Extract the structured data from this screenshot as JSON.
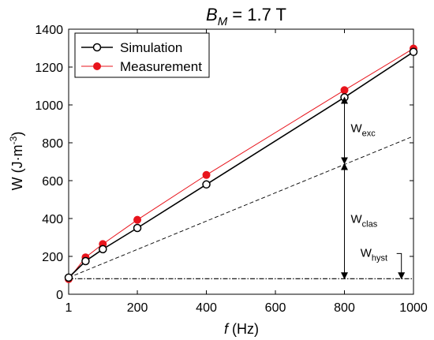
{
  "chart_data": {
    "type": "line",
    "title_parts": {
      "symbol": "B",
      "subscript": "M",
      "rest": " = 1.7 T"
    },
    "xlabel_parts": {
      "italic": "f",
      "rest": " (Hz)"
    },
    "ylabel_parts": {
      "main": "W (J·m",
      "sup": "-3",
      "close": ")"
    },
    "xlim": [
      1,
      1000
    ],
    "ylim": [
      0,
      1400
    ],
    "x_ticks": [
      1,
      200,
      400,
      600,
      800,
      1000
    ],
    "y_ticks": [
      0,
      200,
      400,
      600,
      800,
      1000,
      1200,
      1400
    ],
    "grid": false,
    "legend_position": "top-left",
    "series": [
      {
        "name": "Simulation",
        "style": "black line, open circles",
        "color": "#000000",
        "x": [
          1,
          50,
          100,
          200,
          400,
          800,
          1000
        ],
        "y": [
          88,
          175,
          238,
          350,
          580,
          1040,
          1280
        ]
      },
      {
        "name": "Measurement",
        "style": "red line, filled circles",
        "color": "#e8141c",
        "x": [
          1,
          50,
          100,
          200,
          400,
          800,
          1000
        ],
        "y": [
          80,
          195,
          265,
          393,
          630,
          1078,
          1298
        ]
      }
    ],
    "reference_lines": [
      {
        "kind": "dashed",
        "x": [
          1,
          1000
        ],
        "y": [
          88,
          835
        ]
      },
      {
        "kind": "dash-dot",
        "x": [
          1,
          1000
        ],
        "y": [
          82,
          82
        ]
      }
    ],
    "annotations": [
      {
        "main": "W",
        "sub": "exc",
        "x": 800,
        "y_range": [
          690,
          1040
        ]
      },
      {
        "main": "W",
        "sub": "clas",
        "x": 800,
        "y_range": [
          82,
          690
        ]
      },
      {
        "main": "W",
        "sub": "hyst",
        "x": 965,
        "y": 82
      }
    ]
  }
}
